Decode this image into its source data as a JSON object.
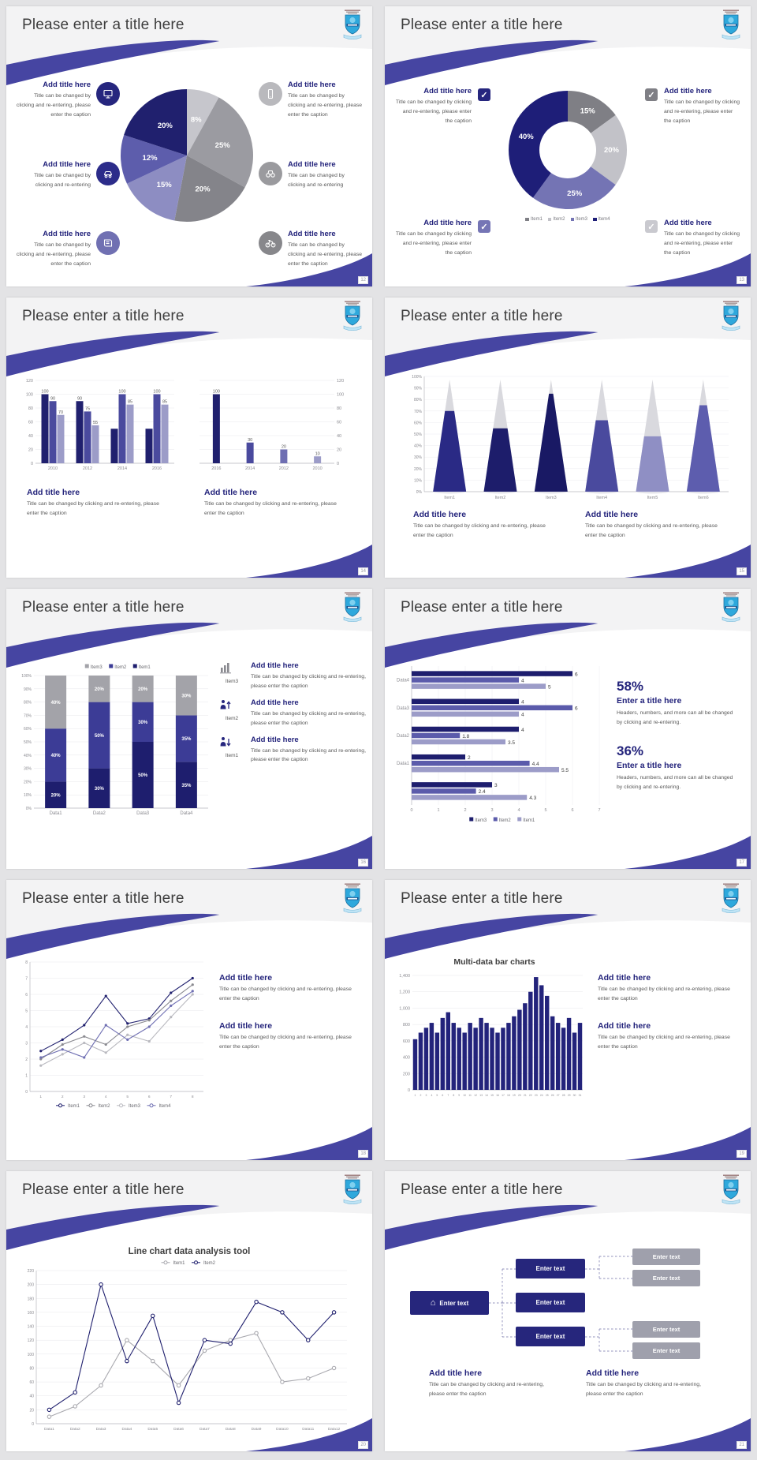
{
  "slides": [
    {
      "page": "12",
      "title": "Please enter a title here",
      "blocks": [
        {
          "title": "Add title here",
          "caption": "Title can be changed by clicking and re-entering, please enter the caption",
          "icon": "monitor-icon",
          "icon_color": "#26267e"
        },
        {
          "title": "Add title here",
          "caption": "Title can be changed by clicking and re-entering",
          "icon": "car-icon",
          "icon_color": "#2c2c8a"
        },
        {
          "title": "Add title here",
          "caption": "Title can be changed by clicking and re-entering, please enter the caption",
          "icon": "book-icon",
          "icon_color": "#7070b2"
        },
        {
          "title": "Add title here",
          "caption": "Title can be changed by clicking and re-entering, please enter the caption",
          "icon": "phone-icon",
          "icon_color": "#b9b9bd"
        },
        {
          "title": "Add title here",
          "caption": "Title can be changed by clicking and re-entering",
          "icon": "binoculars-icon",
          "icon_color": "#9a9a9e"
        },
        {
          "title": "Add title here",
          "caption": "Title can be changed by clicking and re-entering, please enter the caption",
          "icon": "bicycle-icon",
          "icon_color": "#87878b"
        }
      ]
    },
    {
      "page": "13",
      "title": "Please enter a title here",
      "blocks": [
        {
          "title": "Add title here",
          "caption": "Title can be changed by clicking and re-entering, please enter the caption",
          "icon": "checkbox-icon",
          "check_color": "#26267e"
        },
        {
          "title": "Add title here",
          "caption": "Title can be changed by clicking and re-entering, please enter the caption",
          "icon": "checkbox-icon",
          "check_color": "#7575b5"
        },
        {
          "title": "Add title here",
          "caption": "Title can be changed by clicking and re-entering, please enter the caption",
          "icon": "checkbox-icon",
          "check_color": "#7f7f85"
        },
        {
          "title": "Add title here",
          "caption": "Title can be changed by clicking and re-entering, please enter the caption",
          "icon": "checkbox-icon",
          "check_color": "#c9c9cf"
        }
      ]
    },
    {
      "page": "14",
      "title": "Please enter a title here",
      "blocks": [
        {
          "title": "Add title here",
          "caption": "Title can be changed by clicking and re-entering, please enter the caption"
        },
        {
          "title": "Add title here",
          "caption": "Title can be changed by clicking and re-entering, please enter the caption"
        }
      ]
    },
    {
      "page": "15",
      "title": "Please enter a title here",
      "blocks": [
        {
          "title": "Add title here",
          "caption": "Title can be changed by clicking and re-entering, please enter the caption"
        },
        {
          "title": "Add title here",
          "caption": "Title can be changed by clicking and re-entering, please enter the caption"
        }
      ]
    },
    {
      "page": "16",
      "title": "Please enter a title here",
      "items": [
        {
          "item": "Item3",
          "icon": "bar-chart-icon",
          "title": "Add title here",
          "caption": "Title can be changed by clicking and re-entering, please enter the caption"
        },
        {
          "item": "Item2",
          "icon": "person-up-icon",
          "title": "Add title here",
          "caption": "Title can be changed by clicking and re-entering, please enter the caption"
        },
        {
          "item": "Item1",
          "icon": "person-down-icon",
          "title": "Add title here",
          "caption": "Title can be changed by clicking and re-entering, please enter the caption"
        }
      ]
    },
    {
      "page": "17",
      "title": "Please enter a title here",
      "stats": [
        {
          "pct": "58%",
          "title": "Enter a title here",
          "caption": "Headers, numbers, and more can all be changed by clicking and re-entering."
        },
        {
          "pct": "36%",
          "title": "Enter a title here",
          "caption": "Headers, numbers, and more can all be changed by clicking and re-entering."
        }
      ]
    },
    {
      "page": "18",
      "title": "Please enter a title here",
      "blocks": [
        {
          "title": "Add title here",
          "caption": "Title can be changed by clicking and re-entering, please enter the caption"
        },
        {
          "title": "Add title here",
          "caption": "Title can be changed by clicking and re-entering, please enter the caption"
        }
      ]
    },
    {
      "page": "19",
      "title": "Please enter a title here",
      "blocks": [
        {
          "title": "Add title here",
          "caption": "Title can be changed by clicking and re-entering, please enter the caption"
        },
        {
          "title": "Add title here",
          "caption": "Title can be changed by clicking and re-entering, please enter the caption"
        }
      ]
    },
    {
      "page": "20",
      "title": "Please enter a title here"
    },
    {
      "page": "21",
      "title": "Please enter a title here",
      "diagram": {
        "home": "Enter text",
        "center": [
          "Enter text",
          "Enter text",
          "Enter text"
        ],
        "right": [
          "Enter text",
          "Enter text",
          "Enter text",
          "Enter text"
        ]
      },
      "blocks": [
        {
          "title": "Add title here",
          "caption": "Title can be changed by clicking and re-entering, please enter the caption"
        },
        {
          "title": "Add title here",
          "caption": "Title can be changed by clicking and re-entering, please enter the caption"
        }
      ]
    }
  ],
  "chart_data": [
    {
      "type": "pie",
      "values": [
        8,
        25,
        20,
        15,
        12,
        20
      ],
      "labels": [
        "8%",
        "25%",
        "20%",
        "15%",
        "12%",
        "20%"
      ],
      "colors": [
        "#c6c6cc",
        "#9b9ba1",
        "#84848a",
        "#8d8dc2",
        "#5d5dac",
        "#20206e"
      ]
    },
    {
      "type": "pie",
      "inner": 0.48,
      "values": [
        15,
        20,
        25,
        40
      ],
      "labels": [
        "15%",
        "20%",
        "25%",
        "40%"
      ],
      "colors": [
        "#7f7f85",
        "#c2c2c8",
        "#7474b4",
        "#1e1e78"
      ],
      "legend": [
        {
          "name": "Item1",
          "color": "#7f7f85"
        },
        {
          "name": "Item2",
          "color": "#c2c2c8"
        },
        {
          "name": "Item3",
          "color": "#7474b4"
        },
        {
          "name": "Item4",
          "color": "#1e1e78"
        }
      ]
    },
    {
      "type": "bar",
      "yside": "left",
      "yticks": [
        "0",
        "20",
        "40",
        "60",
        "80",
        "100",
        "120"
      ],
      "categories": [
        "2010",
        "2012",
        "2014",
        "2016"
      ],
      "series": [
        {
          "color": "#20206e",
          "values": [
            100,
            90,
            50,
            50
          ],
          "labels": [
            "100",
            "90",
            "",
            ""
          ]
        },
        {
          "color": "#4a4a9e",
          "values": [
            90,
            75,
            100,
            100
          ],
          "labels": [
            "90",
            "75",
            "100",
            "100"
          ]
        },
        {
          "color": "#9c9cc8",
          "values": [
            70,
            55,
            85,
            85
          ],
          "labels": [
            "70",
            "55",
            "85",
            "85"
          ]
        }
      ]
    },
    {
      "type": "bar",
      "yside": "right",
      "yticks": [
        "0",
        "20",
        "40",
        "60",
        "80",
        "100",
        "120"
      ],
      "categories": [
        "2016",
        "2014",
        "2012",
        "2010"
      ],
      "series": [
        {
          "color": "#20206e",
          "values": [
            100,
            30,
            20,
            10
          ],
          "labels": [
            "100",
            "30",
            "20",
            "10"
          ],
          "bar_colors": [
            "#20206e",
            "#4a4a9e",
            "#6e6eb2",
            "#9c9cc8"
          ]
        }
      ]
    },
    {
      "type": "cone",
      "yticks": [
        "100%",
        "90%",
        "80%",
        "70%",
        "60%",
        "50%",
        "40%",
        "30%",
        "20%",
        "10%",
        "0%"
      ],
      "categories": [
        "Item1",
        "Item2",
        "Item3",
        "Item4",
        "Item5",
        "Item6"
      ],
      "values": [
        70,
        55,
        85,
        62,
        48,
        75
      ],
      "colors": [
        "#2a2a85",
        "#1d1d6b",
        "#191964",
        "#4a4a9e",
        "#8f8fc4",
        "#5d5dae"
      ],
      "tip_color": "#d9d9de"
    },
    {
      "type": "stacked",
      "yticks": [
        "0%",
        "10%",
        "20%",
        "30%",
        "40%",
        "50%",
        "60%",
        "70%",
        "80%",
        "90%",
        "100%"
      ],
      "categories": [
        "Data1",
        "Data2",
        "Data3",
        "Data4"
      ],
      "series": [
        {
          "name": "Item1",
          "color": "#1e1e6e",
          "values": [
            20,
            30,
            50,
            35
          ]
        },
        {
          "name": "Item2",
          "color": "#3c3c96",
          "values": [
            40,
            50,
            30,
            35
          ]
        },
        {
          "name": "Item3",
          "color": "#a3a3a9",
          "values": [
            40,
            20,
            20,
            30
          ]
        }
      ],
      "legend": [
        {
          "name": "Item3",
          "color": "#a3a3a9"
        },
        {
          "name": "Item2",
          "color": "#3c3c96"
        },
        {
          "name": "Item1",
          "color": "#1e1e6e"
        }
      ]
    },
    {
      "type": "hbar",
      "xticks": [
        "0",
        "1",
        "2",
        "3",
        "4",
        "5",
        "6",
        "7"
      ],
      "categories": [
        "Data4",
        "Data3",
        "Data2",
        "Data1",
        ""
      ],
      "series": [
        {
          "name": "Item3",
          "color": "#1e1e6e",
          "values": [
            6,
            4,
            4,
            2,
            3
          ]
        },
        {
          "name": "Item2",
          "color": "#5b5bab",
          "values": [
            4,
            6,
            1.8,
            4.4,
            2.4
          ]
        },
        {
          "name": "Item1",
          "color": "#9c9cc8",
          "values": [
            5,
            4,
            3.5,
            5.5,
            4.3
          ]
        }
      ],
      "legend": [
        {
          "name": "Item3",
          "color": "#1e1e6e"
        },
        {
          "name": "Item2",
          "color": "#5b5bab"
        },
        {
          "name": "Item1",
          "color": "#9c9cc8"
        }
      ]
    },
    {
      "type": "line",
      "legend_pos": "bottom",
      "marker": "dot",
      "yticks": [
        "0",
        "1",
        "2",
        "3",
        "4",
        "5",
        "6",
        "7",
        "8"
      ],
      "categories": [
        "1",
        "2",
        "3",
        "4",
        "5",
        "6",
        "7",
        "8"
      ],
      "series": [
        {
          "name": "Item1",
          "color": "#20206e",
          "values": [
            2.5,
            3.2,
            4.1,
            5.9,
            4.2,
            4.5,
            6.1,
            7
          ]
        },
        {
          "name": "Item2",
          "color": "#8a8a90",
          "values": [
            2,
            2.9,
            3.4,
            2.9,
            4,
            4.4,
            5.6,
            6.6
          ]
        },
        {
          "name": "Item3",
          "color": "#b9b9bf",
          "values": [
            1.6,
            2.3,
            3,
            2.4,
            3.5,
            3.1,
            4.6,
            6
          ]
        },
        {
          "name": "Item4",
          "color": "#6e6eb2",
          "values": [
            2.1,
            2.6,
            2.1,
            4.1,
            3.2,
            4,
            5.3,
            6.2
          ]
        }
      ]
    },
    {
      "type": "bar",
      "title": "Multi-data bar charts",
      "yside": "left",
      "yticks": [
        "0",
        "200",
        "400",
        "600",
        "800",
        "1,000",
        "1,200",
        "1,400"
      ],
      "categories": [
        "1",
        "2",
        "3",
        "4",
        "5",
        "6",
        "7",
        "8",
        "9",
        "10",
        "11",
        "12",
        "13",
        "14",
        "15",
        "16",
        "17",
        "18",
        "19",
        "20",
        "21",
        "22",
        "23",
        "24",
        "25",
        "26",
        "27",
        "28",
        "29",
        "30",
        "31"
      ],
      "series": [
        {
          "color": "#23237b",
          "values": [
            620,
            700,
            760,
            820,
            700,
            880,
            950,
            820,
            760,
            700,
            820,
            760,
            880,
            820,
            760,
            700,
            760,
            820,
            900,
            980,
            1060,
            1200,
            1380,
            1280,
            1150,
            900,
            820,
            760,
            880,
            700,
            820
          ]
        }
      ]
    },
    {
      "type": "line",
      "title": "Line chart data analysis tool",
      "legend_pos": "top",
      "marker": "ring",
      "yticks": [
        "0",
        "20",
        "40",
        "60",
        "80",
        "100",
        "120",
        "140",
        "160",
        "180",
        "200",
        "220"
      ],
      "categories": [
        "Data1",
        "Data2",
        "Data3",
        "Data4",
        "Data5",
        "Data6",
        "Data7",
        "Data8",
        "Data9",
        "Data10",
        "Data11",
        "Data12"
      ],
      "series": [
        {
          "name": "Item1",
          "color": "#a9a9af",
          "values": [
            10,
            25,
            55,
            120,
            90,
            55,
            105,
            120,
            130,
            60,
            65,
            80
          ]
        },
        {
          "name": "Item2",
          "color": "#20206e",
          "values": [
            20,
            45,
            200,
            90,
            155,
            30,
            120,
            115,
            175,
            160,
            120,
            160
          ]
        }
      ]
    }
  ]
}
